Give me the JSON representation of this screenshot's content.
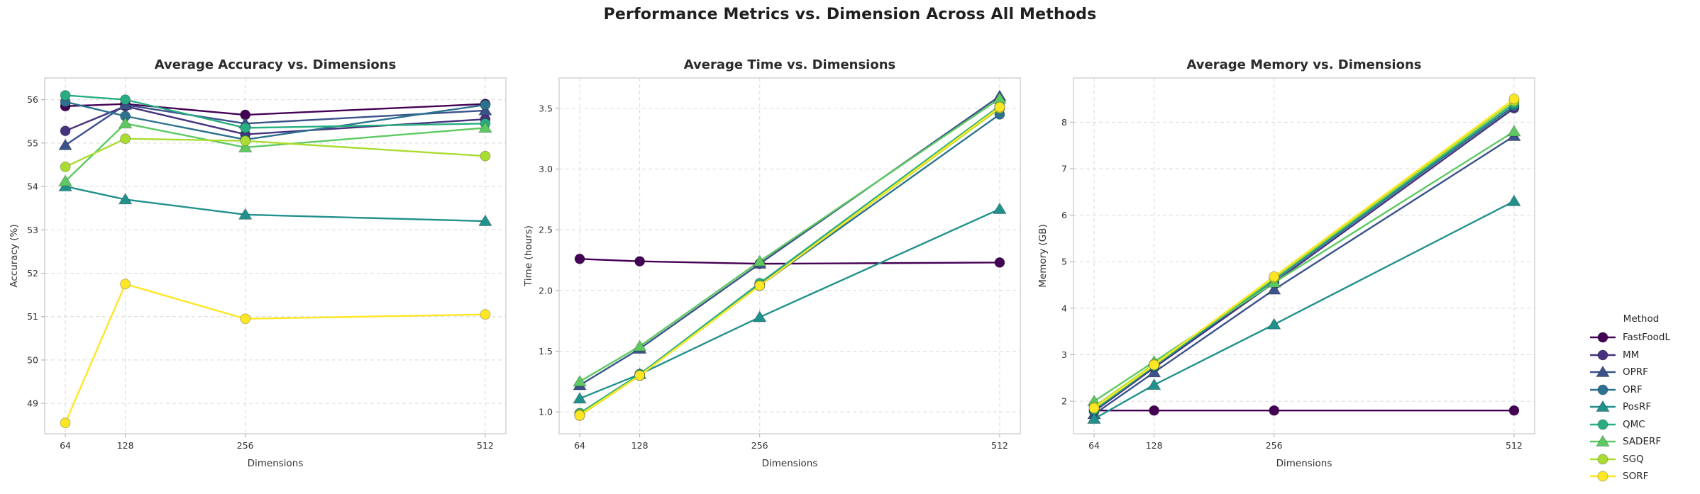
{
  "main_title": "Performance Metrics vs. Dimension Across All Methods",
  "legend": {
    "title": "Method",
    "items": [
      {
        "label": "FastFoodL",
        "color": "#440154",
        "marker": "circle"
      },
      {
        "label": "MM",
        "color": "#46327e",
        "marker": "circle"
      },
      {
        "label": "OPRF",
        "color": "#3b528b",
        "marker": "triangle"
      },
      {
        "label": "ORF",
        "color": "#2c728e",
        "marker": "circle"
      },
      {
        "label": "PosRF",
        "color": "#21918c",
        "marker": "triangle"
      },
      {
        "label": "QMC",
        "color": "#27ad81",
        "marker": "circle"
      },
      {
        "label": "SADERF",
        "color": "#5ec962",
        "marker": "triangle"
      },
      {
        "label": "SGQ",
        "color": "#aadc32",
        "marker": "circle"
      },
      {
        "label": "SORF",
        "color": "#fde725",
        "marker": "circle"
      }
    ]
  },
  "style": {
    "grid_color": "#d9d9d9",
    "border_color": "#cbcbcb",
    "tick_color": "#aaaaaa",
    "background": "#ffffff"
  },
  "chart_data": [
    {
      "type": "line",
      "title": "Average Accuracy vs. Dimensions",
      "xlabel": "Dimensions",
      "ylabel": "Accuracy (%)",
      "x": [
        64,
        128,
        256,
        512
      ],
      "xlim": [
        42,
        534
      ],
      "ylim": [
        48.3,
        56.5
      ],
      "yticks": [
        49,
        50,
        51,
        52,
        53,
        54,
        55,
        56
      ],
      "ytick_decimals": 0,
      "series": [
        {
          "name": "FastFoodL",
          "values": [
            55.85,
            55.9,
            55.65,
            55.9
          ]
        },
        {
          "name": "MM",
          "values": [
            55.28,
            55.85,
            55.2,
            55.55
          ]
        },
        {
          "name": "OPRF",
          "values": [
            54.95,
            55.88,
            55.45,
            55.75
          ]
        },
        {
          "name": "ORF",
          "values": [
            55.95,
            55.62,
            55.08,
            55.88
          ]
        },
        {
          "name": "PosRF",
          "values": [
            54.0,
            53.7,
            53.35,
            53.2
          ]
        },
        {
          "name": "QMC",
          "values": [
            56.1,
            56.0,
            55.35,
            55.45
          ]
        },
        {
          "name": "SADERF",
          "values": [
            54.12,
            55.45,
            54.9,
            55.35
          ]
        },
        {
          "name": "SGQ",
          "values": [
            54.45,
            55.1,
            55.05,
            54.7
          ]
        },
        {
          "name": "SORF",
          "values": [
            48.55,
            51.75,
            50.95,
            51.05
          ]
        }
      ]
    },
    {
      "type": "line",
      "title": "Average Time vs. Dimensions",
      "xlabel": "Dimensions",
      "ylabel": "Time (hours)",
      "x": [
        64,
        128,
        256,
        512
      ],
      "xlim": [
        42,
        534
      ],
      "ylim": [
        0.82,
        3.75
      ],
      "yticks": [
        1.0,
        1.5,
        2.0,
        2.5,
        3.0,
        3.5
      ],
      "ytick_decimals": 1,
      "series": [
        {
          "name": "FastFoodL",
          "values": [
            2.26,
            2.24,
            2.22,
            2.23
          ]
        },
        {
          "name": "MM",
          "values": [
            0.98,
            1.31,
            2.05,
            3.5
          ]
        },
        {
          "name": "OPRF",
          "values": [
            1.22,
            1.52,
            2.22,
            3.6
          ]
        },
        {
          "name": "ORF",
          "values": [
            0.97,
            1.3,
            2.04,
            3.45
          ]
        },
        {
          "name": "PosRF",
          "values": [
            1.11,
            1.31,
            1.78,
            2.67
          ]
        },
        {
          "name": "QMC",
          "values": [
            0.99,
            1.31,
            2.06,
            3.52
          ]
        },
        {
          "name": "SADERF",
          "values": [
            1.25,
            1.54,
            2.24,
            3.58
          ]
        },
        {
          "name": "SGQ",
          "values": [
            0.98,
            1.3,
            2.04,
            3.5
          ]
        },
        {
          "name": "SORF",
          "values": [
            0.97,
            1.3,
            2.04,
            3.51
          ]
        }
      ]
    },
    {
      "type": "line",
      "title": "Average Memory vs. Dimensions",
      "xlabel": "Dimensions",
      "ylabel": "Memory (GB)",
      "x": [
        64,
        128,
        256,
        512
      ],
      "xlim": [
        42,
        534
      ],
      "ylim": [
        1.3,
        8.95
      ],
      "yticks": [
        2,
        3,
        4,
        5,
        6,
        7,
        8
      ],
      "ytick_decimals": 0,
      "series": [
        {
          "name": "FastFoodL",
          "values": [
            1.8,
            1.8,
            1.8,
            1.8
          ]
        },
        {
          "name": "MM",
          "values": [
            1.78,
            2.72,
            4.55,
            8.3
          ]
        },
        {
          "name": "OPRF",
          "values": [
            1.72,
            2.62,
            4.4,
            7.7
          ]
        },
        {
          "name": "ORF",
          "values": [
            1.8,
            2.75,
            4.6,
            8.35
          ]
        },
        {
          "name": "PosRF",
          "values": [
            1.62,
            2.35,
            3.65,
            6.3
          ]
        },
        {
          "name": "QMC",
          "values": [
            1.82,
            2.76,
            4.62,
            8.4
          ]
        },
        {
          "name": "SADERF",
          "values": [
            2.0,
            2.85,
            4.55,
            7.8
          ]
        },
        {
          "name": "SGQ",
          "values": [
            1.88,
            2.8,
            4.65,
            8.45
          ]
        },
        {
          "name": "SORF",
          "values": [
            1.85,
            2.78,
            4.68,
            8.5
          ]
        }
      ]
    }
  ]
}
